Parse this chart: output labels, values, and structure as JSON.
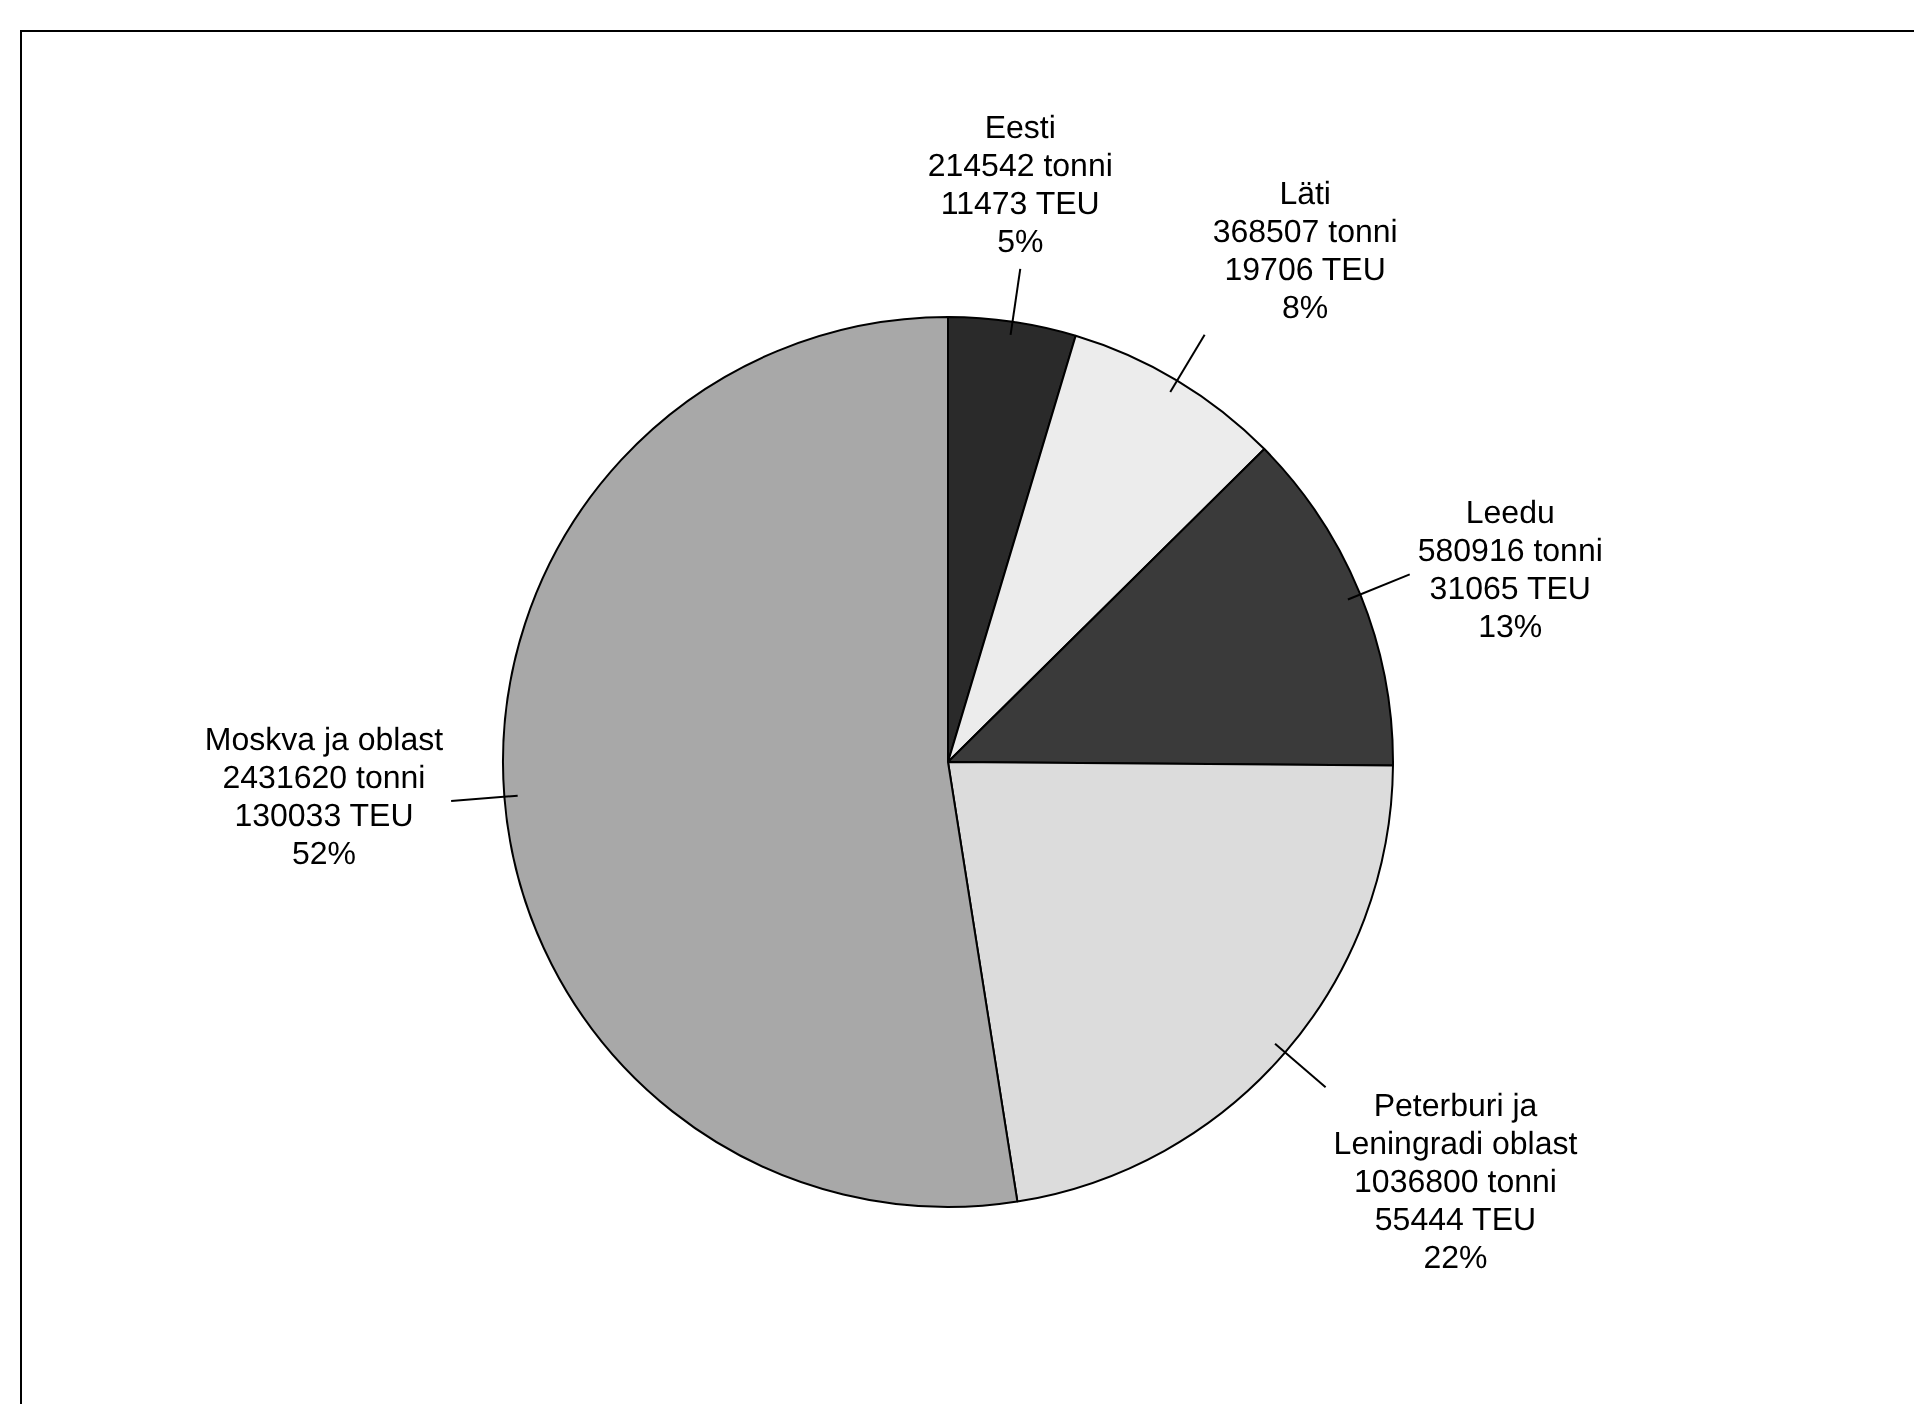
{
  "chart_data": {
    "type": "pie",
    "categories": [
      "Eesti",
      "Läti",
      "Leedu",
      "Peterburi ja Leningradi oblast",
      "Moskva ja oblast"
    ],
    "values": [
      214542,
      368507,
      580916,
      1036800,
      2431620
    ],
    "value_labels": [
      "214542 tonni\n11473 TEU\n5%",
      "368507 tonni\n19706 TEU\n8%",
      "580916 tonni\n31065 TEU\n13%",
      "1036800 tonni\n55444 TEU\n22%",
      "2431620 tonni\n130033 TEU\n52%"
    ],
    "colors": [
      "#2a2a2a",
      "#ececec",
      "#3a3a3a",
      "#dcdcdc",
      "#a8a8a8"
    ],
    "legend": false
  }
}
